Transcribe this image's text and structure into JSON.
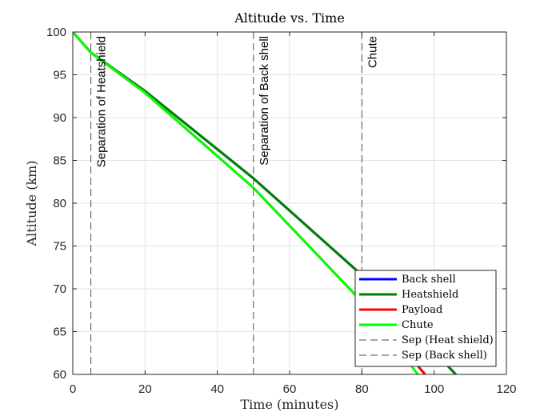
{
  "chart_data": {
    "type": "line",
    "title": "Altitude vs.  Time",
    "xlabel": "Time (minutes)",
    "ylabel": "Altitude (km)",
    "xlim": [
      0,
      120
    ],
    "ylim": [
      60,
      100
    ],
    "xticks": [
      0,
      20,
      40,
      60,
      80,
      100,
      120
    ],
    "yticks": [
      60,
      65,
      70,
      75,
      80,
      85,
      90,
      95,
      100
    ],
    "grid": true,
    "legend_position": "bottom-right",
    "series": [
      {
        "name": "Back shell",
        "color": "#0000ff",
        "x": [
          0,
          5,
          20,
          50,
          80,
          106
        ],
        "y": [
          100,
          97.6,
          93.1,
          82.9,
          71.6,
          60
        ]
      },
      {
        "name": "Heatshield",
        "color": "#008000",
        "x": [
          0,
          5,
          20,
          50,
          80,
          106
        ],
        "y": [
          100,
          97.6,
          93.1,
          82.9,
          71.6,
          60
        ]
      },
      {
        "name": "Payload",
        "color": "#ff0000",
        "x": [
          0,
          5,
          20,
          50,
          80,
          97.5
        ],
        "y": [
          100,
          97.6,
          92.9,
          81.8,
          68.5,
          60
        ]
      },
      {
        "name": "Chute",
        "color": "#00ff00",
        "x": [
          0,
          5,
          20,
          50,
          80,
          95.5
        ],
        "y": [
          100,
          97.6,
          92.9,
          81.8,
          68.5,
          60
        ]
      }
    ],
    "vlines": [
      {
        "name": "Sep (Heat shield)",
        "x": 5,
        "label": "Separation of Heatshield",
        "color": "#4d4d4d"
      },
      {
        "name": "Sep (Back shell)",
        "x": 50,
        "label": "Separation of Back shell",
        "color": "#4d4d4d"
      },
      {
        "name": "",
        "x": 80,
        "label": "Chute",
        "color": "#4d4d4d"
      }
    ]
  }
}
